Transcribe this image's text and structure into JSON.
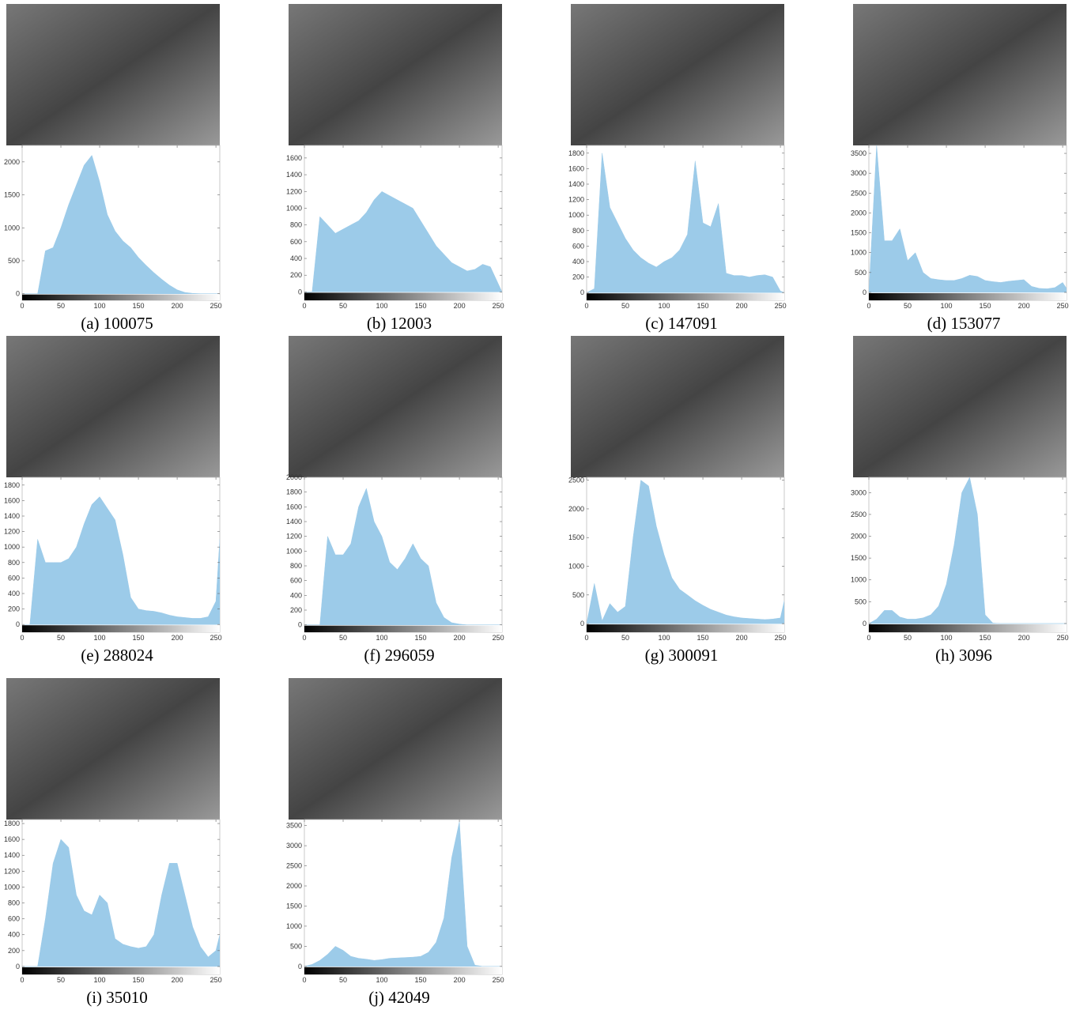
{
  "chart_data": [
    {
      "type": "area",
      "title": "(a) 100075",
      "color": "#9ccbe9",
      "x": [
        0,
        10,
        20,
        30,
        40,
        50,
        60,
        70,
        80,
        90,
        100,
        110,
        120,
        130,
        140,
        150,
        160,
        170,
        180,
        190,
        200,
        210,
        220,
        230,
        240,
        250,
        255
      ],
      "values": [
        0,
        0,
        0,
        650,
        700,
        1000,
        1350,
        1650,
        1950,
        2100,
        1700,
        1200,
        950,
        800,
        700,
        550,
        430,
        320,
        220,
        130,
        60,
        20,
        5,
        0,
        0,
        0,
        0
      ],
      "xlim": [
        0,
        255
      ],
      "ylim": [
        -100,
        2250
      ],
      "xticks": [
        0,
        50,
        100,
        150,
        200,
        250
      ],
      "yticks": [
        0,
        500,
        1000,
        1500,
        2000
      ]
    },
    {
      "type": "area",
      "title": "(b) 12003",
      "color": "#9ccbe9",
      "x": [
        0,
        10,
        20,
        30,
        40,
        50,
        60,
        70,
        80,
        90,
        100,
        110,
        120,
        130,
        140,
        150,
        160,
        170,
        180,
        190,
        200,
        210,
        220,
        230,
        240,
        250,
        255
      ],
      "values": [
        0,
        0,
        900,
        800,
        700,
        750,
        800,
        850,
        950,
        1100,
        1200,
        1150,
        1100,
        1050,
        1000,
        850,
        700,
        550,
        450,
        350,
        300,
        250,
        270,
        330,
        300,
        100,
        0
      ],
      "xlim": [
        0,
        255
      ],
      "ylim": [
        -100,
        1750
      ],
      "xticks": [
        0,
        50,
        100,
        150,
        200,
        250
      ],
      "yticks": [
        0,
        200,
        400,
        600,
        800,
        1000,
        1200,
        1400,
        1600
      ]
    },
    {
      "type": "area",
      "title": "(c) 147091",
      "color": "#9ccbe9",
      "x": [
        0,
        10,
        20,
        30,
        40,
        50,
        60,
        70,
        80,
        90,
        100,
        110,
        120,
        130,
        140,
        150,
        160,
        170,
        180,
        190,
        200,
        210,
        220,
        230,
        240,
        250,
        255
      ],
      "values": [
        0,
        50,
        1800,
        1100,
        900,
        700,
        550,
        450,
        380,
        330,
        400,
        450,
        550,
        750,
        1700,
        900,
        850,
        1150,
        250,
        220,
        220,
        200,
        220,
        230,
        200,
        20,
        0
      ],
      "xlim": [
        0,
        255
      ],
      "ylim": [
        -100,
        1900
      ],
      "xticks": [
        0,
        50,
        100,
        150,
        200,
        250
      ],
      "yticks": [
        0,
        200,
        400,
        600,
        800,
        1000,
        1200,
        1400,
        1600,
        1800
      ]
    },
    {
      "type": "area",
      "title": "(d) 153077",
      "color": "#9ccbe9",
      "x": [
        0,
        10,
        20,
        30,
        40,
        50,
        60,
        70,
        80,
        90,
        100,
        110,
        120,
        130,
        140,
        150,
        160,
        170,
        180,
        190,
        200,
        210,
        220,
        230,
        240,
        250,
        255
      ],
      "values": [
        0,
        3700,
        1300,
        1300,
        1600,
        800,
        1000,
        500,
        350,
        320,
        300,
        300,
        350,
        430,
        400,
        300,
        270,
        250,
        280,
        300,
        320,
        150,
        100,
        90,
        120,
        250,
        100
      ],
      "xlim": [
        0,
        255
      ],
      "ylim": [
        -200,
        3700
      ],
      "xticks": [
        0,
        50,
        100,
        150,
        200,
        250
      ],
      "yticks": [
        0,
        500,
        1000,
        1500,
        2000,
        2500,
        3000,
        3500
      ]
    },
    {
      "type": "area",
      "title": "(e) 288024",
      "color": "#9ccbe9",
      "x": [
        0,
        10,
        20,
        30,
        40,
        50,
        60,
        70,
        80,
        90,
        100,
        110,
        120,
        130,
        140,
        150,
        160,
        170,
        180,
        190,
        200,
        210,
        220,
        230,
        240,
        250,
        255
      ],
      "values": [
        0,
        0,
        1100,
        800,
        800,
        800,
        850,
        1000,
        1300,
        1550,
        1650,
        1500,
        1350,
        900,
        350,
        200,
        180,
        170,
        150,
        120,
        100,
        90,
        80,
        80,
        100,
        300,
        1100
      ],
      "xlim": [
        0,
        255
      ],
      "ylim": [
        -100,
        1900
      ],
      "xticks": [
        0,
        50,
        100,
        150,
        200,
        250
      ],
      "yticks": [
        0,
        200,
        400,
        600,
        800,
        1000,
        1200,
        1400,
        1600,
        1800
      ]
    },
    {
      "type": "area",
      "title": "(f) 296059",
      "color": "#9ccbe9",
      "x": [
        0,
        10,
        20,
        30,
        40,
        50,
        60,
        70,
        80,
        90,
        100,
        110,
        120,
        130,
        140,
        150,
        160,
        170,
        180,
        190,
        200,
        210,
        220,
        230,
        240,
        250,
        255
      ],
      "values": [
        0,
        0,
        0,
        1200,
        950,
        950,
        1100,
        1600,
        1850,
        1400,
        1200,
        850,
        750,
        900,
        1100,
        900,
        800,
        300,
        100,
        30,
        10,
        0,
        0,
        0,
        0,
        0,
        0
      ],
      "xlim": [
        0,
        255
      ],
      "ylim": [
        -100,
        2000
      ],
      "xticks": [
        0,
        50,
        100,
        150,
        200,
        250
      ],
      "yticks": [
        0,
        200,
        400,
        600,
        800,
        1000,
        1200,
        1400,
        1600,
        1800,
        2000
      ]
    },
    {
      "type": "area",
      "title": "(g) 300091",
      "color": "#9ccbe9",
      "x": [
        0,
        10,
        20,
        30,
        40,
        50,
        60,
        70,
        80,
        90,
        100,
        110,
        120,
        130,
        140,
        150,
        160,
        170,
        180,
        190,
        200,
        210,
        220,
        230,
        240,
        250,
        255
      ],
      "values": [
        0,
        700,
        50,
        350,
        200,
        300,
        1500,
        2500,
        2400,
        1700,
        1200,
        800,
        600,
        500,
        400,
        320,
        250,
        200,
        150,
        120,
        100,
        90,
        80,
        70,
        80,
        100,
        400
      ],
      "xlim": [
        0,
        255
      ],
      "ylim": [
        -150,
        2550
      ],
      "xticks": [
        0,
        50,
        100,
        150,
        200,
        250
      ],
      "yticks": [
        0,
        500,
        1000,
        1500,
        2000,
        2500
      ]
    },
    {
      "type": "area",
      "title": "(h) 3096",
      "color": "#9ccbe9",
      "x": [
        0,
        10,
        20,
        30,
        40,
        50,
        60,
        70,
        80,
        90,
        100,
        110,
        120,
        130,
        140,
        150,
        160,
        170,
        180,
        190,
        200,
        210,
        220,
        230,
        240,
        250,
        255
      ],
      "values": [
        0,
        100,
        300,
        300,
        150,
        100,
        100,
        130,
        200,
        400,
        900,
        1800,
        3000,
        3350,
        2500,
        200,
        10,
        0,
        0,
        0,
        0,
        0,
        0,
        0,
        0,
        0,
        0
      ],
      "xlim": [
        0,
        255
      ],
      "ylim": [
        -200,
        3350
      ],
      "xticks": [
        0,
        50,
        100,
        150,
        200,
        250
      ],
      "yticks": [
        0,
        500,
        1000,
        1500,
        2000,
        2500,
        3000
      ]
    },
    {
      "type": "area",
      "title": "(i) 35010",
      "color": "#9ccbe9",
      "x": [
        0,
        10,
        20,
        30,
        40,
        50,
        60,
        70,
        80,
        90,
        100,
        110,
        120,
        130,
        140,
        150,
        160,
        170,
        180,
        190,
        200,
        210,
        220,
        230,
        240,
        250,
        255
      ],
      "values": [
        0,
        0,
        0,
        600,
        1300,
        1600,
        1500,
        900,
        700,
        650,
        900,
        800,
        350,
        280,
        250,
        230,
        250,
        400,
        900,
        1300,
        1300,
        900,
        500,
        250,
        120,
        200,
        400
      ],
      "xlim": [
        0,
        255
      ],
      "ylim": [
        -100,
        1850
      ],
      "xticks": [
        0,
        50,
        100,
        150,
        200,
        250
      ],
      "yticks": [
        0,
        200,
        400,
        600,
        800,
        1000,
        1200,
        1400,
        1600,
        1800
      ]
    },
    {
      "type": "area",
      "title": "(j) 42049",
      "color": "#9ccbe9",
      "x": [
        0,
        10,
        20,
        30,
        40,
        50,
        60,
        70,
        80,
        90,
        100,
        110,
        120,
        130,
        140,
        150,
        160,
        170,
        180,
        190,
        200,
        210,
        220,
        230,
        240,
        250,
        255
      ],
      "values": [
        0,
        50,
        150,
        300,
        500,
        400,
        250,
        200,
        180,
        150,
        170,
        200,
        210,
        220,
        230,
        250,
        350,
        600,
        1200,
        2700,
        3600,
        500,
        30,
        0,
        0,
        0,
        0
      ],
      "xlim": [
        0,
        255
      ],
      "ylim": [
        -200,
        3650
      ],
      "xticks": [
        0,
        50,
        100,
        150,
        200,
        250
      ],
      "yticks": [
        0,
        500,
        1000,
        1500,
        2000,
        2500,
        3000,
        3500
      ]
    }
  ]
}
